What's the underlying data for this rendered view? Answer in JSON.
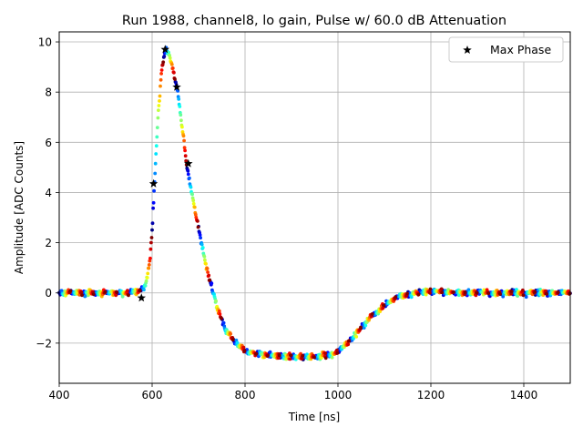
{
  "chart_data": {
    "type": "scatter",
    "title": "Run 1988, channel8, lo gain, Pulse w/ 60.0 dB Attenuation",
    "xlabel": "Time [ns]",
    "ylabel": "Amplitude [ADC Counts]",
    "xlim": [
      400,
      1500
    ],
    "ylim": [
      -3.6,
      10.4
    ],
    "xticks": [
      400,
      600,
      800,
      1000,
      1200,
      1400
    ],
    "yticks": [
      -2,
      0,
      2,
      4,
      6,
      8,
      10
    ],
    "grid": true,
    "legend": {
      "position": "top-right",
      "entries": [
        "Max Phase"
      ]
    },
    "pulse_shape": {
      "x": [
        400,
        540,
        570,
        585,
        595,
        600,
        605,
        612,
        620,
        628,
        636,
        645,
        655,
        665,
        675,
        690,
        705,
        720,
        740,
        760,
        780,
        800,
        830,
        860,
        900,
        950,
        990,
        1010,
        1030,
        1050,
        1070,
        1090,
        1110,
        1130,
        1150,
        1180,
        1210,
        1250,
        1300,
        1500
      ],
      "y": [
        0,
        0,
        0.05,
        0.3,
        1.2,
        2.5,
        4.3,
        6.8,
        8.8,
        9.7,
        9.5,
        8.9,
        8.0,
        6.6,
        5.0,
        3.5,
        2.1,
        0.8,
        -0.6,
        -1.5,
        -2.0,
        -2.3,
        -2.45,
        -2.5,
        -2.55,
        -2.55,
        -2.45,
        -2.2,
        -1.8,
        -1.4,
        -1.0,
        -0.65,
        -0.35,
        -0.15,
        -0.05,
        0.05,
        0.05,
        0.02,
        0,
        0
      ]
    },
    "max_phase": {
      "name": "Max Phase",
      "x": [
        577,
        603,
        628,
        653,
        678
      ],
      "y": [
        -0.2,
        4.35,
        9.7,
        8.2,
        5.15
      ]
    }
  }
}
